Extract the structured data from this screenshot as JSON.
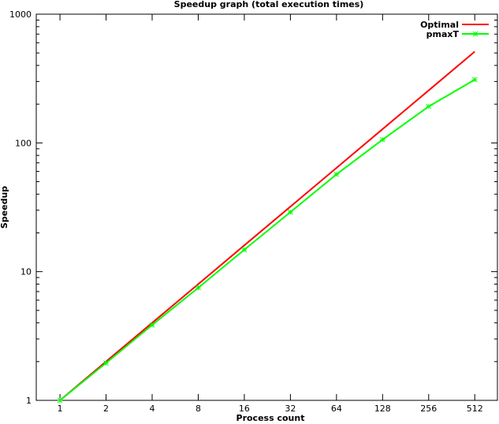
{
  "chart_data": {
    "type": "line",
    "title": "Speedup graph (total execution times)",
    "xlabel": "Process count",
    "ylabel": "Speedup",
    "x_scale": "log2",
    "y_scale": "log10",
    "x": [
      1,
      2,
      4,
      8,
      16,
      32,
      64,
      128,
      256,
      512
    ],
    "x_tick_labels": [
      "1",
      "2",
      "4",
      "8",
      "16",
      "32",
      "64",
      "128",
      "256",
      "512"
    ],
    "y_tick_labels": [
      "1",
      "10",
      "100",
      "1000"
    ],
    "y_ticks": [
      1,
      10,
      100,
      1000
    ],
    "xlim": [
      0.7,
      720
    ],
    "ylim": [
      1,
      1000
    ],
    "grid": false,
    "legend_position": "top-right",
    "series": [
      {
        "name": "Optimal",
        "color": "#ff0000",
        "marker": "none",
        "values": [
          1,
          2,
          4,
          8,
          16,
          32,
          64,
          128,
          256,
          512
        ]
      },
      {
        "name": "pmaxT",
        "color": "#00ff00",
        "marker": "star",
        "values": [
          1,
          1.95,
          3.85,
          7.5,
          14.8,
          29,
          57,
          106,
          192,
          310
        ]
      }
    ]
  }
}
